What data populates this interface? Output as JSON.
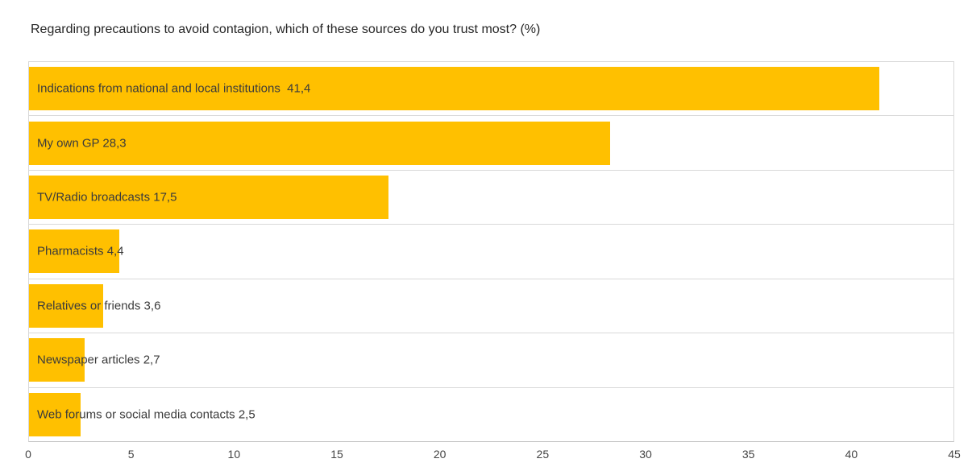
{
  "title": "Regarding precautions to avoid contagion, which of these sources do you trust most? (%)",
  "chart_data": {
    "type": "bar",
    "orientation": "horizontal",
    "title": "Regarding precautions to avoid contagion, which of these sources do you trust most? (%)",
    "categories": [
      "Indications from national and local institutions",
      "My own GP",
      "TV/Radio broadcasts",
      "Pharmacists",
      "Relatives or friends",
      "Newspaper articles",
      "Web forums or social media contacts"
    ],
    "values": [
      41.4,
      28.3,
      17.5,
      4.4,
      3.6,
      2.7,
      2.5
    ],
    "bar_labels": [
      "Indications from national and local institutions  41,4",
      "My own GP 28,3",
      "TV/Radio broadcasts 17,5",
      "Pharmacists 4,4",
      "Relatives or friends 3,6",
      "Newspaper articles 2,7",
      "Web forums or social media contacts 2,5"
    ],
    "xlabel": "",
    "ylabel": "",
    "xlim": [
      0,
      45
    ],
    "x_ticks": [
      "0",
      "5",
      "10",
      "15",
      "20",
      "25",
      "30",
      "35",
      "40",
      "45"
    ],
    "grid": "horizontal row separators only",
    "legend_position": "none",
    "value_labels": "inside bar start, comma decimal separator"
  },
  "colors": {
    "bar_fill": "#FFC000",
    "gridline": "#D9D9D9",
    "axis_line": "#C2C2C2",
    "title_text": "#262626",
    "bar_label_text": "#3B3B3B",
    "tick_text": "#444444",
    "background": "#FFFFFF"
  }
}
